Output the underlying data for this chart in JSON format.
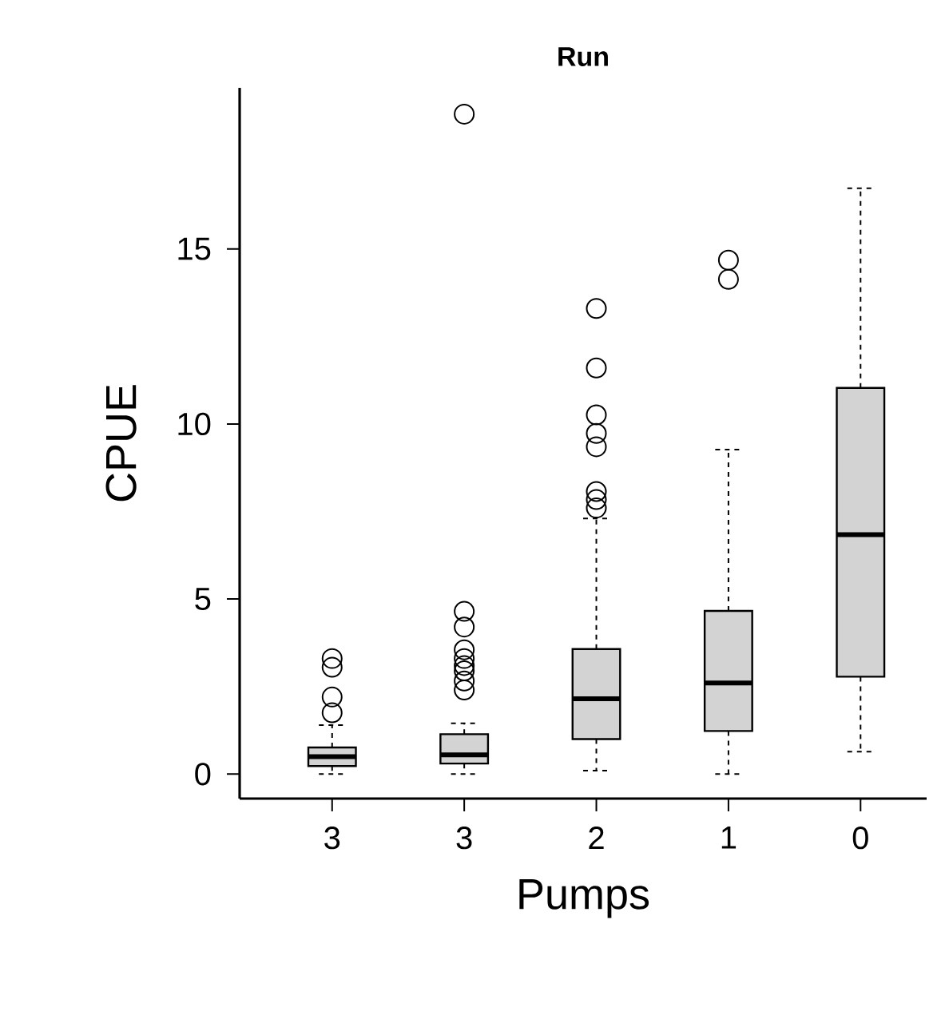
{
  "chart_data": {
    "type": "box",
    "title": "Run",
    "xlabel": "Pumps",
    "ylabel": "CPUE",
    "categories": [
      "3",
      "3",
      "2",
      "1",
      "0"
    ],
    "ylim": [
      -0.7,
      19.6
    ],
    "yticks": [
      0,
      5,
      10,
      15
    ],
    "color": "#d3d3d3",
    "marker": "circle",
    "grid": false,
    "boxes": [
      {
        "low": 0,
        "q1": 0.23,
        "median": 0.5,
        "q3": 0.76,
        "high": 1.4,
        "outliers": [
          3.3,
          3.05,
          2.2,
          1.75
        ]
      },
      {
        "low": 0,
        "q1": 0.3,
        "median": 0.55,
        "q3": 1.14,
        "high": 1.45,
        "outliers": [
          18.85,
          4.65,
          4.2,
          3.55,
          3.3,
          3.1,
          2.95,
          2.66,
          2.4
        ]
      },
      {
        "low": 0.1,
        "q1": 1.0,
        "median": 2.15,
        "q3": 3.57,
        "high": 7.3,
        "outliers": [
          13.3,
          11.6,
          10.26,
          9.73,
          9.35,
          8.07,
          7.84,
          7.6
        ]
      },
      {
        "low": 0,
        "q1": 1.23,
        "median": 2.6,
        "q3": 4.66,
        "high": 9.27,
        "outliers": [
          14.68,
          14.13
        ]
      },
      {
        "low": 0.64,
        "q1": 2.78,
        "median": 6.84,
        "q3": 11.03,
        "high": 16.73
      }
    ]
  }
}
